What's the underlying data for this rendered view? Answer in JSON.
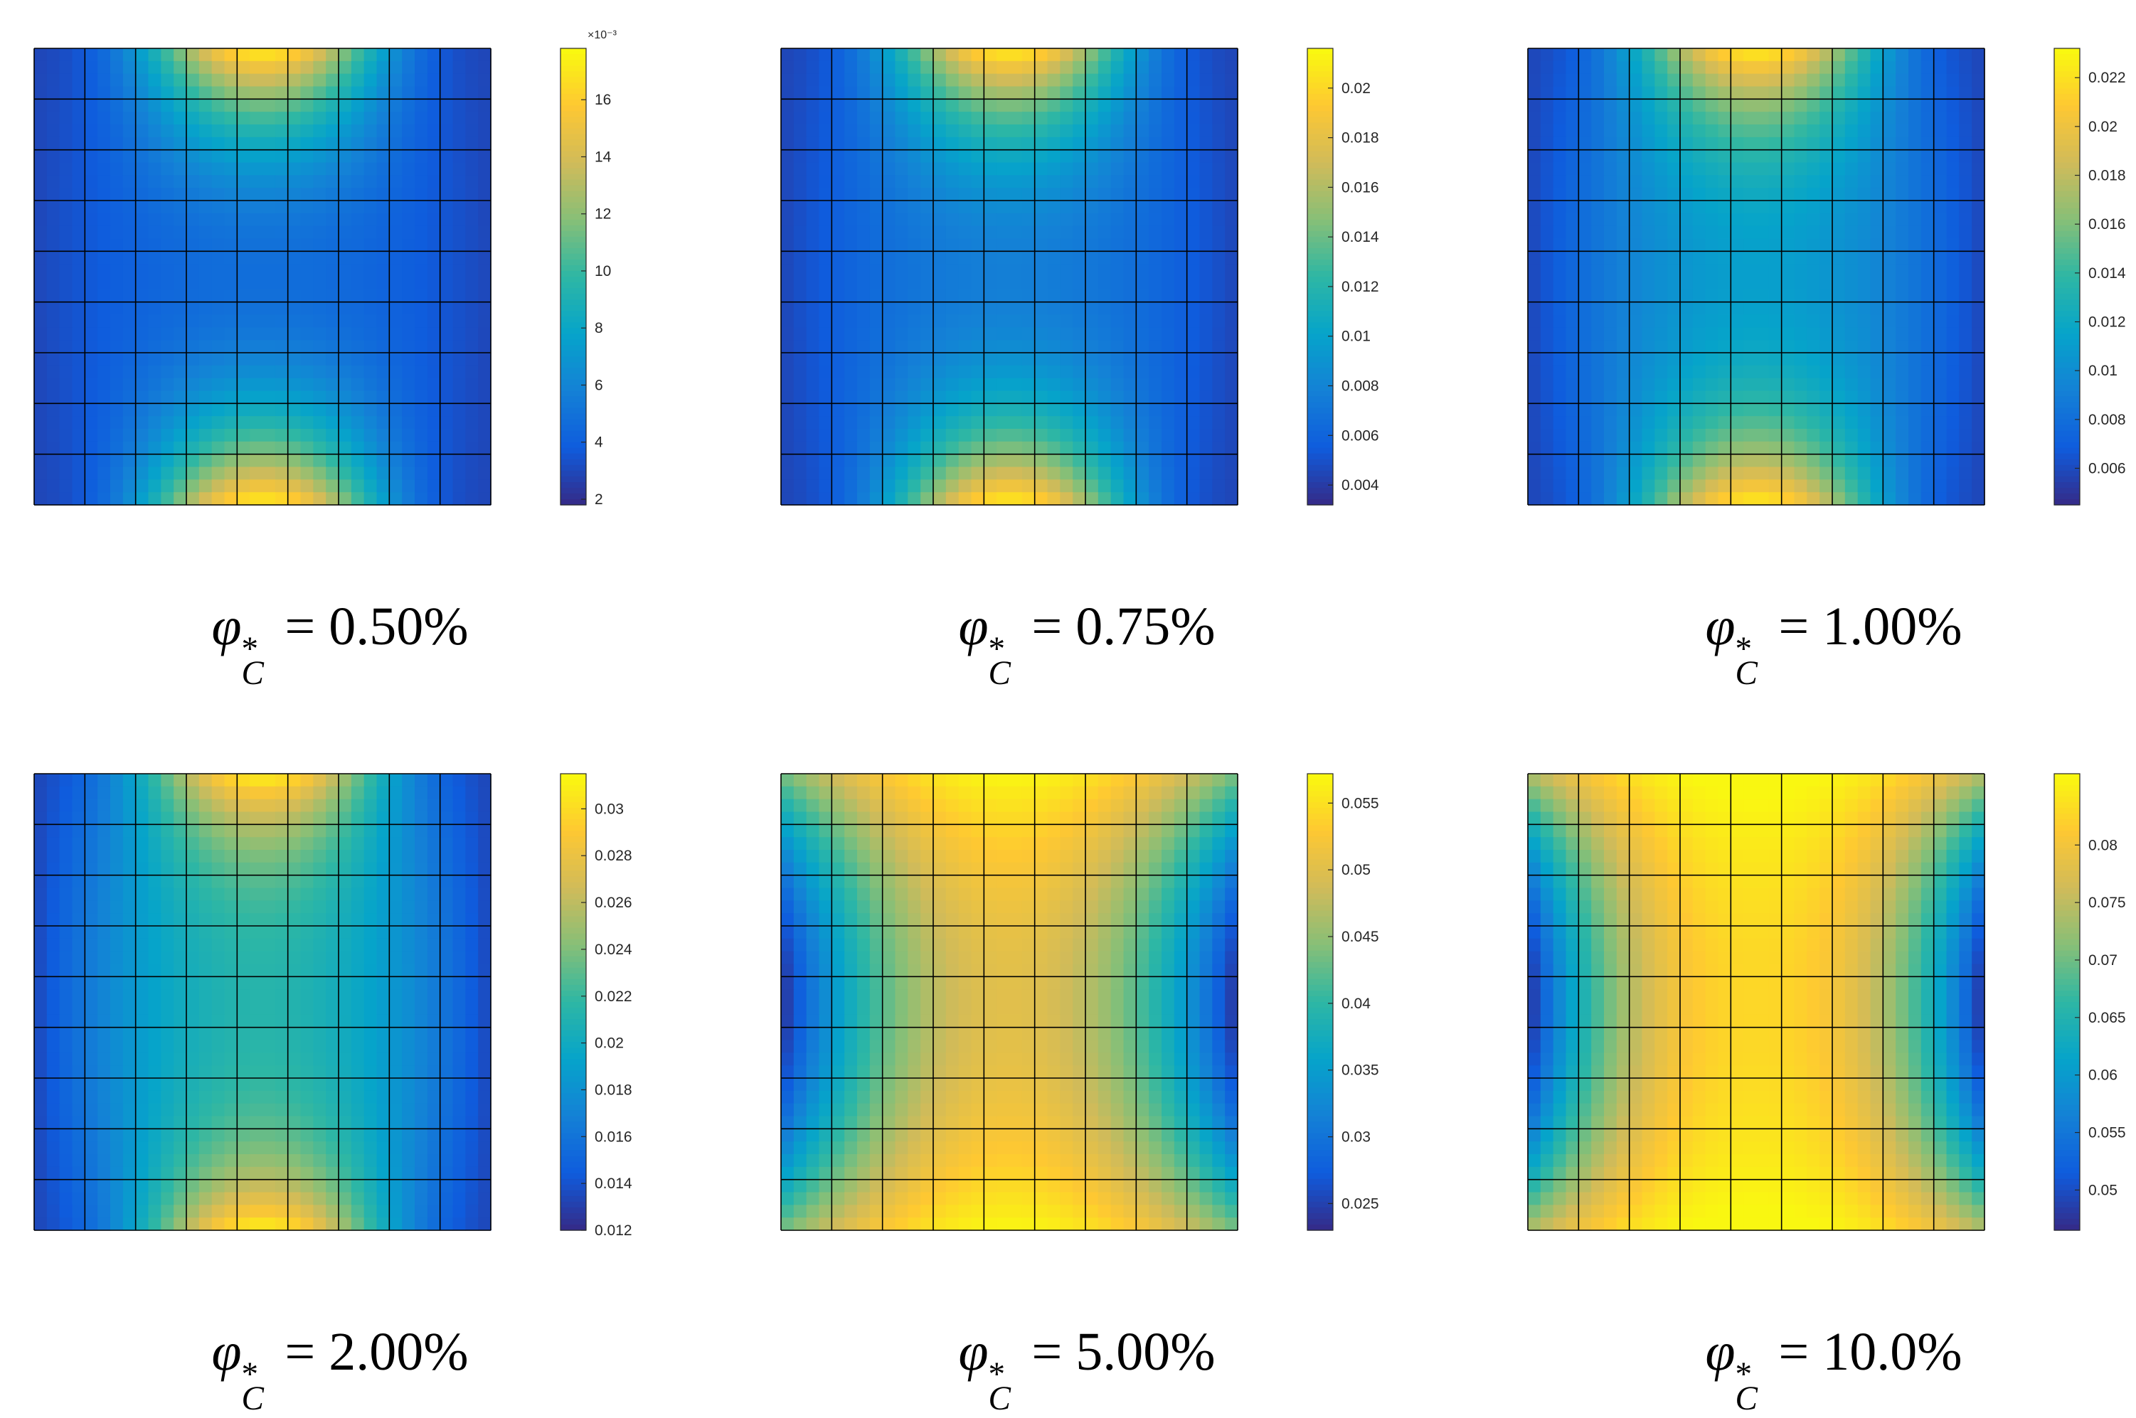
{
  "figure": {
    "colormap": "parula",
    "parula_stops": [
      "#352a87",
      "#0f5cdd",
      "#1481d6",
      "#06a4ca",
      "#2eb7a4",
      "#87bf77",
      "#d1bb59",
      "#fec832",
      "#f9fb0e"
    ],
    "grid_line_color": "#000000"
  },
  "chart_data": [
    {
      "type": "heatmap",
      "caption": {
        "symbol": "φ",
        "superscript": "*",
        "subscript": "C",
        "equals": "=",
        "value": "0.50%"
      },
      "grid": {
        "rows": 9,
        "cols": 9
      },
      "field": {
        "min": 0.002,
        "max": 0.0175,
        "pattern": "top-bottom",
        "mid_level": 0.12
      },
      "colorbar": {
        "range": [
          0.0018,
          0.0178
        ],
        "exponent_label": "×10⁻³",
        "ticks": [
          0.002,
          0.004,
          0.006,
          0.008,
          0.01,
          0.012,
          0.014,
          0.016
        ],
        "tick_labels": [
          "2",
          "4",
          "6",
          "8",
          "10",
          "12",
          "14",
          "16"
        ]
      }
    },
    {
      "type": "heatmap",
      "caption": {
        "symbol": "φ",
        "superscript": "*",
        "subscript": "C",
        "equals": "=",
        "value": "0.75%"
      },
      "grid": {
        "rows": 9,
        "cols": 9
      },
      "field": {
        "min": 0.0034,
        "max": 0.0212,
        "pattern": "top-bottom",
        "mid_level": 0.18
      },
      "colorbar": {
        "range": [
          0.0032,
          0.0216
        ],
        "exponent_label": "",
        "ticks": [
          0.004,
          0.006,
          0.008,
          0.01,
          0.012,
          0.014,
          0.016,
          0.018,
          0.02
        ],
        "tick_labels": [
          "0.004",
          "0.006",
          "0.008",
          "0.01",
          "0.012",
          "0.014",
          "0.016",
          "0.018",
          "0.02"
        ]
      }
    },
    {
      "type": "heatmap",
      "caption": {
        "symbol": "φ",
        "superscript": "*",
        "subscript": "C",
        "equals": "=",
        "value": "1.00%"
      },
      "grid": {
        "rows": 9,
        "cols": 9
      },
      "field": {
        "min": 0.0047,
        "max": 0.0228,
        "pattern": "top-bottom",
        "mid_level": 0.3
      },
      "colorbar": {
        "range": [
          0.0045,
          0.0232
        ],
        "exponent_label": "",
        "ticks": [
          0.006,
          0.008,
          0.01,
          0.012,
          0.014,
          0.016,
          0.018,
          0.02,
          0.022
        ],
        "tick_labels": [
          "0.006",
          "0.008",
          "0.01",
          "0.012",
          "0.014",
          "0.016",
          "0.018",
          "0.02",
          "0.022"
        ]
      }
    },
    {
      "type": "heatmap",
      "caption": {
        "symbol": "φ",
        "superscript": "*",
        "subscript": "C",
        "equals": "=",
        "value": "2.00%"
      },
      "grid": {
        "rows": 9,
        "cols": 9
      },
      "field": {
        "min": 0.0122,
        "max": 0.0312,
        "pattern": "top-bottom",
        "mid_level": 0.42
      },
      "colorbar": {
        "range": [
          0.012,
          0.0315
        ],
        "exponent_label": "",
        "ticks": [
          0.012,
          0.014,
          0.016,
          0.018,
          0.02,
          0.022,
          0.024,
          0.026,
          0.028,
          0.03
        ],
        "tick_labels": [
          "0.012",
          "0.014",
          "0.016",
          "0.018",
          "0.02",
          "0.022",
          "0.024",
          "0.026",
          "0.028",
          "0.03"
        ]
      }
    },
    {
      "type": "heatmap",
      "caption": {
        "symbol": "φ",
        "superscript": "*",
        "subscript": "C",
        "equals": "=",
        "value": "5.00%"
      },
      "grid": {
        "rows": 9,
        "cols": 9
      },
      "field": {
        "min": 0.0235,
        "max": 0.0568,
        "pattern": "center-band",
        "mid_level": 0.8
      },
      "colorbar": {
        "range": [
          0.023,
          0.0572
        ],
        "exponent_label": "",
        "ticks": [
          0.025,
          0.03,
          0.035,
          0.04,
          0.045,
          0.05,
          0.055
        ],
        "tick_labels": [
          "0.025",
          "0.03",
          "0.035",
          "0.04",
          "0.045",
          "0.05",
          "0.055"
        ]
      }
    },
    {
      "type": "heatmap",
      "caption": {
        "symbol": "φ",
        "superscript": "*",
        "subscript": "C",
        "equals": "=",
        "value": "10.0%"
      },
      "grid": {
        "rows": 9,
        "cols": 9
      },
      "field": {
        "min": 0.0468,
        "max": 0.0858,
        "pattern": "vertical-band",
        "mid_level": 0.92
      },
      "colorbar": {
        "range": [
          0.0465,
          0.0862
        ],
        "exponent_label": "",
        "ticks": [
          0.05,
          0.055,
          0.06,
          0.065,
          0.07,
          0.075,
          0.08
        ],
        "tick_labels": [
          "0.05",
          "0.055",
          "0.06",
          "0.065",
          "0.07",
          "0.075",
          "0.08"
        ]
      }
    }
  ]
}
